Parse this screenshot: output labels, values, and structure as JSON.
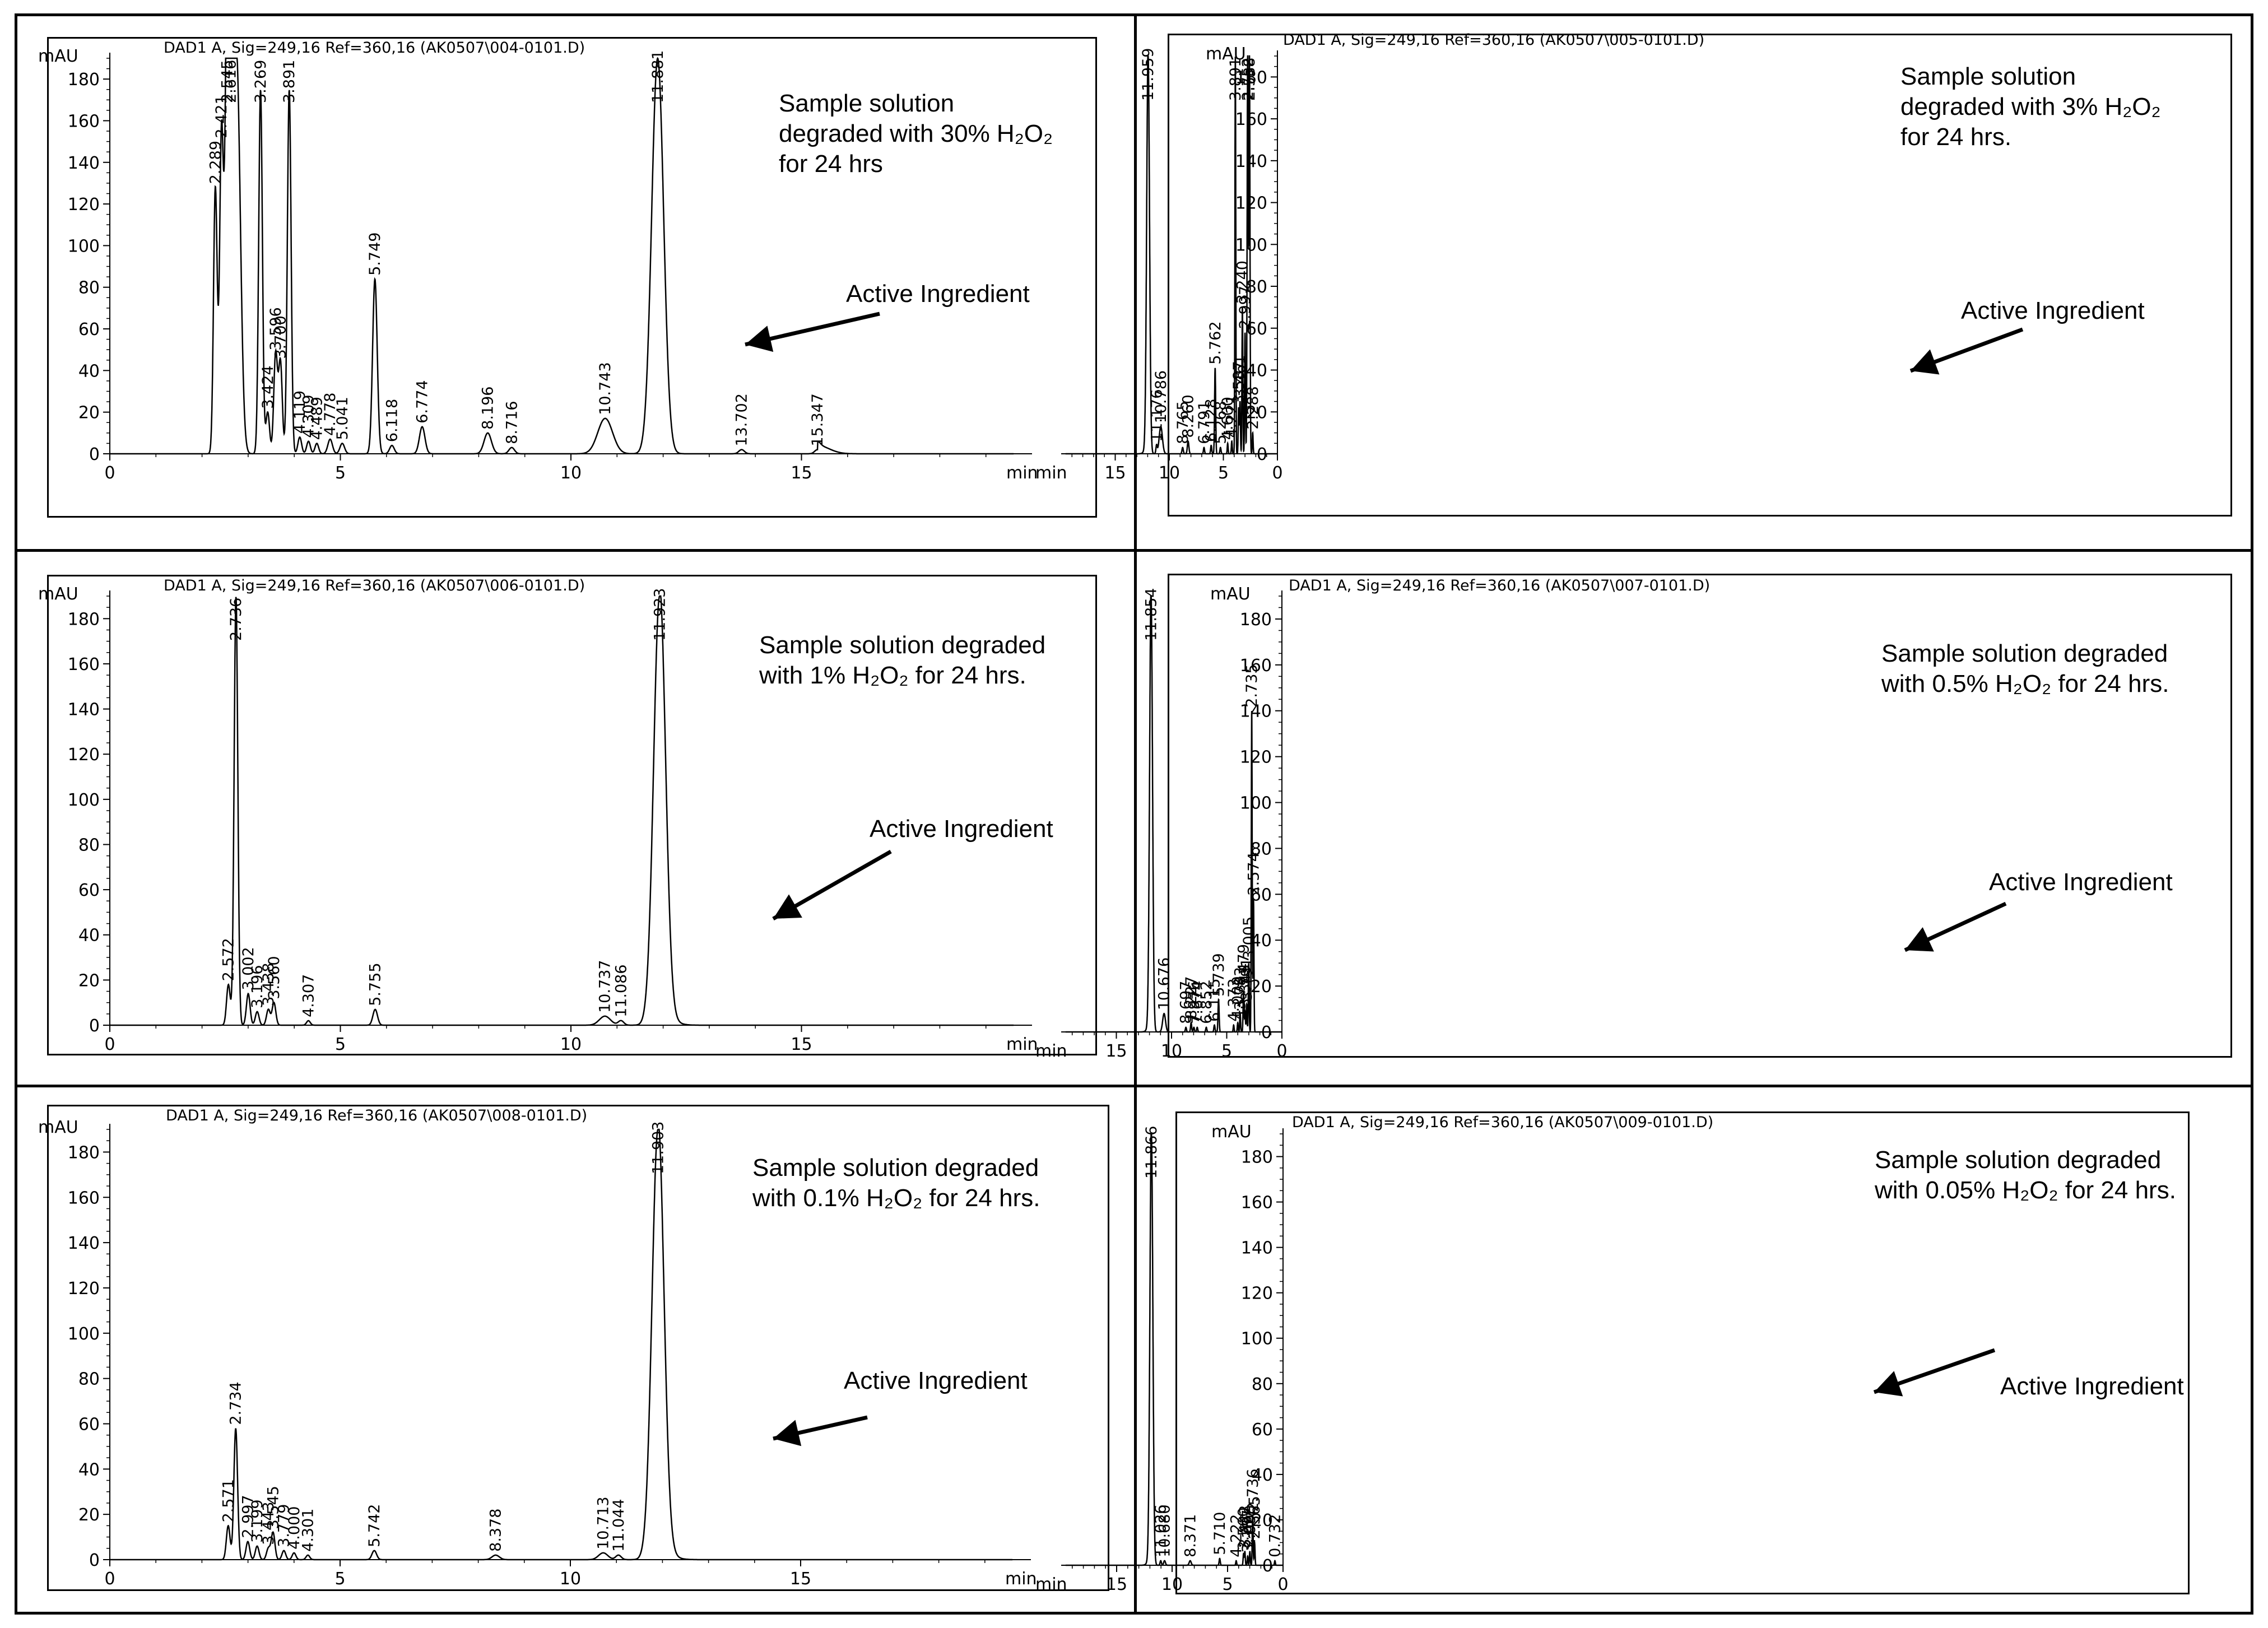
{
  "header_text_prefix": "DAD1 A, Sig=249,16 Ref=360,16",
  "y_unit": "mAU",
  "x_unit": "min",
  "annotation_label": "Active Ingredient",
  "colors": {
    "trace": "#000000",
    "frame": "#000000",
    "background": "#ffffff"
  },
  "chart_data": [
    {
      "type": "line",
      "header": "DAD1 A, Sig=249,16 Ref=360,16 (AK0507\\004-0101.D)",
      "caption": "Sample solution\ndegraded with 30% H₂O₂\nfor 24 hrs",
      "annotation": "Active Ingredient",
      "ylabel": "mAU",
      "xlabel": "min",
      "xlim": [
        0,
        20
      ],
      "ylim": [
        0,
        190
      ],
      "xticks": [
        0,
        5,
        10,
        15
      ],
      "yticks": [
        0,
        20,
        40,
        60,
        80,
        100,
        120,
        140,
        160,
        180
      ],
      "peaks": [
        {
          "rt": 2.289,
          "label": "2.289",
          "height": 128,
          "width": 0.04
        },
        {
          "rt": 2.421,
          "label": "2.421",
          "height": 150,
          "width": 0.04
        },
        {
          "rt": 2.545,
          "label": "2.545",
          "height": 190,
          "width": 0.05
        },
        {
          "rt": 2.616,
          "label": "2.616",
          "height": 190,
          "width": 0.05
        },
        {
          "rt": 2.75,
          "label": "",
          "height": 190,
          "width": 0.08
        },
        {
          "rt": 3.269,
          "label": "3.269",
          "height": 175,
          "width": 0.04
        },
        {
          "rt": 3.424,
          "label": "3.424",
          "height": 20,
          "width": 0.04
        },
        {
          "rt": 3.596,
          "label": "3.596",
          "height": 48,
          "width": 0.04
        },
        {
          "rt": 3.7,
          "label": "3.700",
          "height": 44,
          "width": 0.04
        },
        {
          "rt": 3.891,
          "label": "3.891",
          "height": 175,
          "width": 0.04
        },
        {
          "rt": 4.119,
          "label": "4.119",
          "height": 8,
          "width": 0.04
        },
        {
          "rt": 4.309,
          "label": "4.309",
          "height": 6,
          "width": 0.04
        },
        {
          "rt": 4.489,
          "label": "4.489",
          "height": 5,
          "width": 0.04
        },
        {
          "rt": 4.778,
          "label": "4.778",
          "height": 7,
          "width": 0.05
        },
        {
          "rt": 5.041,
          "label": "5.041",
          "height": 5,
          "width": 0.05
        },
        {
          "rt": 5.749,
          "label": "5.749",
          "height": 84,
          "width": 0.05
        },
        {
          "rt": 6.118,
          "label": "6.118",
          "height": 4,
          "width": 0.05
        },
        {
          "rt": 6.774,
          "label": "6.774",
          "height": 13,
          "width": 0.06
        },
        {
          "rt": 8.196,
          "label": "8.196",
          "height": 10,
          "width": 0.08
        },
        {
          "rt": 8.716,
          "label": "8.716",
          "height": 3,
          "width": 0.06
        },
        {
          "rt": 10.743,
          "label": "10.743",
          "height": 17,
          "width": 0.16
        },
        {
          "rt": 11.881,
          "label": "11.881",
          "height": 190,
          "width": 0.13
        },
        {
          "rt": 13.702,
          "label": "13.702",
          "height": 2,
          "width": 0.06
        },
        {
          "rt": 15.347,
          "label": "15.347",
          "height": 2,
          "width": 0.06
        }
      ]
    },
    {
      "type": "line",
      "header": "DAD1 A, Sig=249,16 Ref=360,16 (AK0507\\005-0101.D)",
      "caption": "Sample solution\ndegraded with 3% H₂O₂\nfor 24 hrs.",
      "annotation": "Active Ingredient",
      "ylabel": "mAU",
      "xlabel": "min",
      "xlim": [
        0,
        20
      ],
      "ylim": [
        0,
        190
      ],
      "xticks": [
        0,
        5,
        10,
        15
      ],
      "yticks": [
        0,
        20,
        40,
        60,
        80,
        100,
        120,
        140,
        160,
        180
      ],
      "peaks": [
        {
          "rt": 2.288,
          "label": "2.288",
          "height": 10,
          "width": 0.04
        },
        {
          "rt": 2.588,
          "label": "2.588",
          "height": 190,
          "width": 0.05
        },
        {
          "rt": 2.752,
          "label": "2.752",
          "height": 190,
          "width": 0.05
        },
        {
          "rt": 2.997,
          "label": "2.997",
          "height": 58,
          "width": 0.04
        },
        {
          "rt": 3.24,
          "label": "3.240",
          "height": 70,
          "width": 0.04
        },
        {
          "rt": 3.461,
          "label": "3.461",
          "height": 25,
          "width": 0.04
        },
        {
          "rt": 3.587,
          "label": "3.587",
          "height": 22,
          "width": 0.04
        },
        {
          "rt": 3.891,
          "label": "3.891",
          "height": 190,
          "width": 0.04
        },
        {
          "rt": 4.221,
          "label": "4.221",
          "height": 6,
          "width": 0.04
        },
        {
          "rt": 4.6,
          "label": "4.600",
          "height": 5,
          "width": 0.04
        },
        {
          "rt": 5.268,
          "label": "5.268",
          "height": 3,
          "width": 0.05
        },
        {
          "rt": 5.762,
          "label": "5.762",
          "height": 41,
          "width": 0.05
        },
        {
          "rt": 6.128,
          "label": "6.128",
          "height": 4,
          "width": 0.05
        },
        {
          "rt": 6.791,
          "label": "6.791",
          "height": 3,
          "width": 0.05
        },
        {
          "rt": 8.26,
          "label": "8.260",
          "height": 6,
          "width": 0.07
        },
        {
          "rt": 8.765,
          "label": "8.765",
          "height": 3,
          "width": 0.06
        },
        {
          "rt": 10.786,
          "label": "10.786",
          "height": 13,
          "width": 0.15
        },
        {
          "rt": 11.176,
          "label": "11.176",
          "height": 4,
          "width": 0.06
        },
        {
          "rt": 11.959,
          "label": "11.959",
          "height": 190,
          "width": 0.13
        }
      ]
    },
    {
      "type": "line",
      "header": "DAD1 A, Sig=249,16 Ref=360,16 (AK0507\\006-0101.D)",
      "caption": "Sample solution degraded\nwith 1% H₂O₂ for 24 hrs.",
      "annotation": "Active Ingredient",
      "ylabel": "mAU",
      "xlabel": "min",
      "xlim": [
        0,
        20
      ],
      "ylim": [
        0,
        190
      ],
      "xticks": [
        0,
        5,
        10,
        15
      ],
      "yticks": [
        0,
        20,
        40,
        60,
        80,
        100,
        120,
        140,
        160,
        180
      ],
      "peaks": [
        {
          "rt": 2.572,
          "label": "2.572",
          "height": 18,
          "width": 0.04
        },
        {
          "rt": 2.736,
          "label": "2.736",
          "height": 190,
          "width": 0.04
        },
        {
          "rt": 3.002,
          "label": "3.002",
          "height": 14,
          "width": 0.04
        },
        {
          "rt": 3.196,
          "label": "3.196",
          "height": 6,
          "width": 0.04
        },
        {
          "rt": 3.438,
          "label": "3.438",
          "height": 7,
          "width": 0.04
        },
        {
          "rt": 3.56,
          "label": "3.560",
          "height": 10,
          "width": 0.04
        },
        {
          "rt": 4.307,
          "label": "4.307",
          "height": 2,
          "width": 0.04
        },
        {
          "rt": 5.755,
          "label": "5.755",
          "height": 7,
          "width": 0.05
        },
        {
          "rt": 10.737,
          "label": "10.737",
          "height": 4,
          "width": 0.12
        },
        {
          "rt": 11.086,
          "label": "11.086",
          "height": 2,
          "width": 0.06
        },
        {
          "rt": 11.923,
          "label": "11.923",
          "height": 190,
          "width": 0.13
        }
      ]
    },
    {
      "type": "line",
      "header": "DAD1 A, Sig=249,16 Ref=360,16 (AK0507\\007-0101.D)",
      "caption": "Sample solution degraded\nwith 0.5% H₂O₂ for 24 hrs.",
      "annotation": "Active Ingredient",
      "ylabel": "mAU",
      "xlabel": "min",
      "xlim": [
        0,
        20
      ],
      "ylim": [
        0,
        190
      ],
      "xticks": [
        0,
        5,
        10,
        15
      ],
      "yticks": [
        0,
        20,
        40,
        60,
        80,
        100,
        120,
        140,
        160,
        180
      ],
      "peaks": [
        {
          "rt": 2.574,
          "label": "2.574",
          "height": 58,
          "width": 0.04
        },
        {
          "rt": 2.735,
          "label": "2.735",
          "height": 140,
          "width": 0.04
        },
        {
          "rt": 3.005,
          "label": "3.005",
          "height": 30,
          "width": 0.04
        },
        {
          "rt": 3.191,
          "label": "3.191",
          "height": 12,
          "width": 0.04
        },
        {
          "rt": 3.345,
          "label": "3.345",
          "height": 9,
          "width": 0.04
        },
        {
          "rt": 3.479,
          "label": "3.479",
          "height": 18,
          "width": 0.04
        },
        {
          "rt": 3.783,
          "label": "3.783",
          "height": 8,
          "width": 0.04
        },
        {
          "rt": 4.0,
          "label": "4.000",
          "height": 4,
          "width": 0.04
        },
        {
          "rt": 4.373,
          "label": "4.373",
          "height": 3,
          "width": 0.04
        },
        {
          "rt": 5.739,
          "label": "5.739",
          "height": 14,
          "width": 0.05
        },
        {
          "rt": 6.115,
          "label": "6.115",
          "height": 3,
          "width": 0.05
        },
        {
          "rt": 6.852,
          "label": "6.852",
          "height": 2,
          "width": 0.05
        },
        {
          "rt": 7.674,
          "label": "7.674",
          "height": 2,
          "width": 0.05
        },
        {
          "rt": 7.976,
          "label": "7.976",
          "height": 2,
          "width": 0.05
        },
        {
          "rt": 8.227,
          "label": "8.227",
          "height": 4,
          "width": 0.05
        },
        {
          "rt": 8.697,
          "label": "8.697",
          "height": 2,
          "width": 0.05
        },
        {
          "rt": 10.676,
          "label": "10.676",
          "height": 8,
          "width": 0.13
        },
        {
          "rt": 11.854,
          "label": "11.854",
          "height": 190,
          "width": 0.13
        }
      ]
    },
    {
      "type": "line",
      "header": "DAD1 A, Sig=249,16 Ref=360,16 (AK0507\\008-0101.D)",
      "caption": "Sample solution degraded\nwith 0.1% H₂O₂ for 24 hrs.",
      "annotation": "Active Ingredient",
      "ylabel": "mAU",
      "xlabel": "min",
      "xlim": [
        0,
        20
      ],
      "ylim": [
        0,
        190
      ],
      "xticks": [
        0,
        5,
        10,
        15
      ],
      "yticks": [
        0,
        20,
        40,
        60,
        80,
        100,
        120,
        140,
        160,
        180
      ],
      "peaks": [
        {
          "rt": 2.571,
          "label": "2.571",
          "height": 15,
          "width": 0.04
        },
        {
          "rt": 2.734,
          "label": "2.734",
          "height": 58,
          "width": 0.04
        },
        {
          "rt": 2.997,
          "label": "2.997",
          "height": 8,
          "width": 0.04
        },
        {
          "rt": 3.199,
          "label": "3.199",
          "height": 6,
          "width": 0.04
        },
        {
          "rt": 3.443,
          "label": "3.443",
          "height": 5,
          "width": 0.04
        },
        {
          "rt": 3.545,
          "label": "3.545",
          "height": 12,
          "width": 0.04
        },
        {
          "rt": 3.779,
          "label": "3.779",
          "height": 4,
          "width": 0.04
        },
        {
          "rt": 4.0,
          "label": "4.000",
          "height": 3,
          "width": 0.04
        },
        {
          "rt": 4.301,
          "label": "4.301",
          "height": 2,
          "width": 0.04
        },
        {
          "rt": 5.742,
          "label": "5.742",
          "height": 4,
          "width": 0.05
        },
        {
          "rt": 8.378,
          "label": "8.378",
          "height": 2,
          "width": 0.08
        },
        {
          "rt": 10.713,
          "label": "10.713",
          "height": 3,
          "width": 0.1
        },
        {
          "rt": 11.044,
          "label": "11.044",
          "height": 2,
          "width": 0.06
        },
        {
          "rt": 11.903,
          "label": "11.903",
          "height": 190,
          "width": 0.13
        }
      ]
    },
    {
      "type": "line",
      "header": "DAD1 A, Sig=249,16 Ref=360,16 (AK0507\\009-0101.D)",
      "caption": "Sample solution degraded\nwith 0.05% H₂O₂ for 24 hrs.",
      "annotation": "Active Ingredient",
      "ylabel": "mAU",
      "xlabel": "min",
      "xlim": [
        0,
        20
      ],
      "ylim": [
        0,
        190
      ],
      "xticks": [
        0,
        5,
        10,
        15
      ],
      "yticks": [
        0,
        20,
        40,
        60,
        80,
        100,
        120,
        140,
        160,
        180
      ],
      "peaks": [
        {
          "rt": 0.732,
          "label": "0.732",
          "height": 2,
          "width": 0.04
        },
        {
          "rt": 2.565,
          "label": "2.565",
          "height": 10,
          "width": 0.04
        },
        {
          "rt": 2.736,
          "label": "2.736",
          "height": 22,
          "width": 0.04
        },
        {
          "rt": 2.99,
          "label": "2.990",
          "height": 6,
          "width": 0.04
        },
        {
          "rt": 3.187,
          "label": "3.187",
          "height": 4,
          "width": 0.04
        },
        {
          "rt": 3.442,
          "label": "3.442",
          "height": 6,
          "width": 0.04
        },
        {
          "rt": 3.56,
          "label": "3.560",
          "height": 5,
          "width": 0.04
        },
        {
          "rt": 4.222,
          "label": "4.222",
          "height": 2,
          "width": 0.04
        },
        {
          "rt": 5.71,
          "label": "5.710",
          "height": 3,
          "width": 0.05
        },
        {
          "rt": 8.371,
          "label": "8.371",
          "height": 2,
          "width": 0.09
        },
        {
          "rt": 10.68,
          "label": "10.680",
          "height": 2,
          "width": 0.08
        },
        {
          "rt": 11.026,
          "label": "11.026",
          "height": 2,
          "width": 0.06
        },
        {
          "rt": 11.866,
          "label": "11.866",
          "height": 190,
          "width": 0.13
        }
      ]
    }
  ]
}
